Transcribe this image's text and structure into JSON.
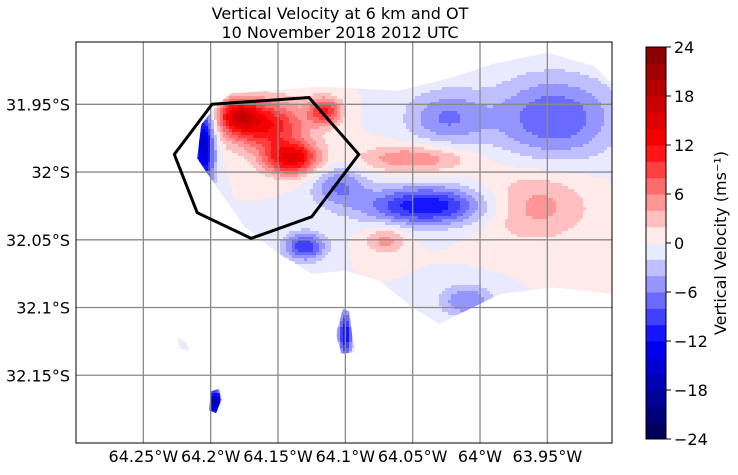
{
  "chart_data": {
    "type": "heatmap",
    "title": "Vertical Velocity at 6 km and OT",
    "subtitle": "10 November 2018 2012 UTC",
    "xlabel": "",
    "ylabel": "",
    "xlim": [
      -64.3,
      -63.902
    ],
    "ylim": [
      -32.2,
      -31.904
    ],
    "x_ticks": [
      {
        "value": -64.25,
        "label": "64.25°W"
      },
      {
        "value": -64.2,
        "label": "64.2°W"
      },
      {
        "value": -64.15,
        "label": "64.15°W"
      },
      {
        "value": -64.1,
        "label": "64.1°W"
      },
      {
        "value": -64.05,
        "label": "64.05°W"
      },
      {
        "value": -64.0,
        "label": "64°W"
      },
      {
        "value": -63.95,
        "label": "63.95°W"
      }
    ],
    "y_ticks": [
      {
        "value": -31.95,
        "label": "31.95°S"
      },
      {
        "value": -32.0,
        "label": "32°S"
      },
      {
        "value": -32.05,
        "label": "32.05°S"
      },
      {
        "value": -32.1,
        "label": "32.1°S"
      },
      {
        "value": -32.15,
        "label": "32.15°S"
      }
    ],
    "grid": true,
    "colorbar": {
      "label": "Vertical Velocity (ms⁻¹)",
      "min": -24,
      "max": 24,
      "step": 2,
      "tick_values": [
        24,
        18,
        12,
        6,
        0,
        -6,
        -12,
        -18,
        -24
      ],
      "tick_labels": [
        "24",
        "18",
        "12",
        "6",
        "0",
        "−6",
        "−12",
        "−18",
        "−24"
      ],
      "colormap": "seismic"
    },
    "overshooting_top_outline": {
      "name": "OT",
      "color": "#000000",
      "vertices": [
        [
          -64.199,
          -31.95
        ],
        [
          -64.127,
          -31.945
        ],
        [
          -64.09,
          -31.987
        ],
        [
          -64.125,
          -32.033
        ],
        [
          -64.17,
          -32.049
        ],
        [
          -64.21,
          -32.03
        ],
        [
          -64.227,
          -31.987
        ]
      ]
    },
    "velocity_field_blobs": [
      {
        "lon": -64.16,
        "lat": -31.965,
        "w": 12,
        "rlon": 0.03,
        "rlat": 0.018
      },
      {
        "lon": -64.14,
        "lat": -31.99,
        "w": 14,
        "rlon": 0.02,
        "rlat": 0.012
      },
      {
        "lon": -64.18,
        "lat": -31.958,
        "w": 10,
        "rlon": 0.015,
        "rlat": 0.012
      },
      {
        "lon": -64.115,
        "lat": -31.955,
        "w": 10,
        "rlon": 0.012,
        "rlat": 0.01
      },
      {
        "lon": -64.05,
        "lat": -31.99,
        "w": 6,
        "rlon": 0.04,
        "rlat": 0.01
      },
      {
        "lon": -64.07,
        "lat": -32.05,
        "w": 5,
        "rlon": 0.015,
        "rlat": 0.01
      },
      {
        "lon": -63.96,
        "lat": -32.025,
        "w": 5,
        "rlon": 0.04,
        "rlat": 0.025
      },
      {
        "lon": -64.04,
        "lat": -32.025,
        "w": -12,
        "rlon": 0.045,
        "rlat": 0.014
      },
      {
        "lon": -63.945,
        "lat": -31.96,
        "w": -8,
        "rlon": 0.045,
        "rlat": 0.03
      },
      {
        "lon": -64.025,
        "lat": -31.96,
        "w": -6,
        "rlon": 0.03,
        "rlat": 0.02
      },
      {
        "lon": -64.01,
        "lat": -32.095,
        "w": -6,
        "rlon": 0.02,
        "rlat": 0.012
      },
      {
        "lon": -64.205,
        "lat": -31.98,
        "w": -16,
        "rlon": 0.008,
        "rlat": 0.03
      },
      {
        "lon": -64.105,
        "lat": -32.01,
        "w": -6,
        "rlon": 0.02,
        "rlat": 0.015
      },
      {
        "lon": -64.13,
        "lat": -32.055,
        "w": -10,
        "rlon": 0.015,
        "rlat": 0.01
      },
      {
        "lon": -64.1,
        "lat": -32.12,
        "w": -12,
        "rlon": 0.005,
        "rlat": 0.018
      },
      {
        "lon": -64.197,
        "lat": -32.17,
        "w": -18,
        "rlon": 0.006,
        "rlat": 0.01
      }
    ]
  }
}
